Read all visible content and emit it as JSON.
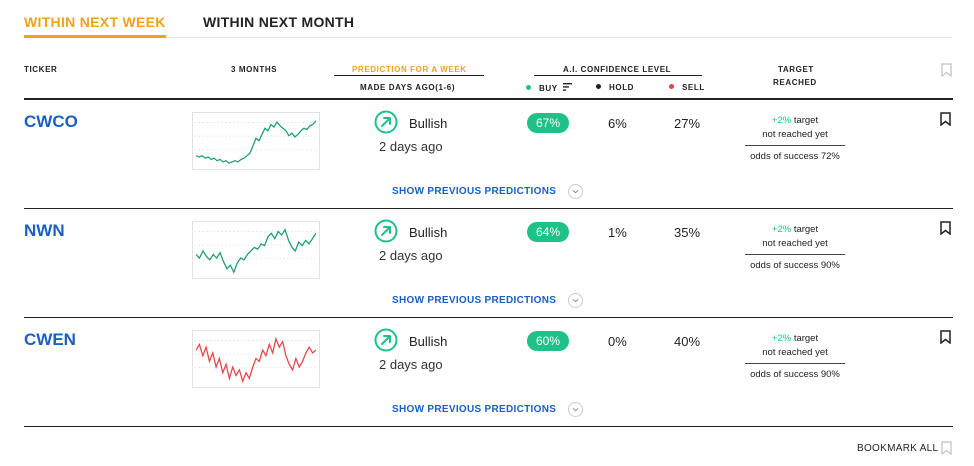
{
  "tabs": [
    {
      "label": "WITHIN NEXT WEEK",
      "active": true
    },
    {
      "label": "WITHIN NEXT MONTH",
      "active": false
    }
  ],
  "columns": {
    "ticker": "TICKER",
    "three_months": "3 MONTHS",
    "prediction_for_week": "PREDICTION FOR A WEEK",
    "made_days_ago": "MADE DAYS AGO(1-6)",
    "confidence": "A.I. CONFIDENCE LEVEL",
    "buy": "BUY",
    "hold": "HOLD",
    "sell": "SELL",
    "target_line1": "TARGET",
    "target_line2": "REACHED"
  },
  "colors": {
    "accent": "#f0a21b",
    "link": "#1a5fc4",
    "buy": "#1fc189",
    "hold": "#222222",
    "sell": "#e8424b",
    "spark_up": "#1a9e6e",
    "spark_down": "#e8424b"
  },
  "rows": [
    {
      "ticker": "CWCO",
      "spark_trend": "up",
      "spark_values": [
        30,
        29,
        30,
        28,
        29,
        27,
        28,
        26,
        27,
        25,
        26,
        24,
        25,
        26,
        25,
        27,
        28,
        30,
        32,
        38,
        44,
        42,
        47,
        52,
        50,
        55,
        53,
        57,
        54,
        52,
        50,
        46,
        48,
        45,
        47,
        50,
        52,
        51,
        54,
        55,
        58
      ],
      "prediction": "Bullish",
      "days_ago": "2 days ago",
      "buy": "67%",
      "hold": "6%",
      "sell": "27%",
      "target_plus": "+2%",
      "target_word": "target",
      "target_status": "not reached yet",
      "odds": "odds of success 72%",
      "show_previous": "SHOW PREVIOUS PREDICTIONS"
    },
    {
      "ticker": "NWN",
      "spark_trend": "up",
      "spark_values": [
        38,
        36,
        40,
        37,
        35,
        38,
        36,
        39,
        34,
        30,
        32,
        28,
        33,
        36,
        35,
        38,
        40,
        42,
        41,
        44,
        43,
        48,
        50,
        47,
        51,
        49,
        52,
        46,
        42,
        40,
        45,
        43,
        46,
        44,
        47,
        50
      ],
      "prediction": "Bullish",
      "days_ago": "2 days ago",
      "buy": "64%",
      "hold": "1%",
      "sell": "35%",
      "target_plus": "+2%",
      "target_word": "target",
      "target_status": "not reached yet",
      "odds": "odds of success 90%",
      "show_previous": "SHOW PREVIOUS PREDICTIONS"
    },
    {
      "ticker": "CWEN",
      "spark_trend": "down",
      "spark_values": [
        48,
        50,
        46,
        49,
        44,
        47,
        42,
        45,
        40,
        43,
        38,
        42,
        39,
        41,
        37,
        40,
        38,
        42,
        45,
        44,
        48,
        46,
        50,
        47,
        52,
        49,
        51,
        46,
        43,
        41,
        45,
        42,
        44,
        47,
        49,
        47,
        48
      ],
      "prediction": "Bullish",
      "days_ago": "2 days ago",
      "buy": "60%",
      "hold": "0%",
      "sell": "40%",
      "target_plus": "+2%",
      "target_word": "target",
      "target_status": "not reached yet",
      "odds": "odds of success 90%",
      "show_previous": "SHOW PREVIOUS PREDICTIONS"
    }
  ],
  "footer": {
    "bookmark_all": "BOOKMARK ALL"
  },
  "icons": {
    "row_bookmark": "bookmark-icon",
    "header_bookmark": "bookmark-outline-icon",
    "prediction": "arrow-up-right-circle-icon",
    "expand": "chevron-down-icon",
    "sort": "sort-icon"
  }
}
